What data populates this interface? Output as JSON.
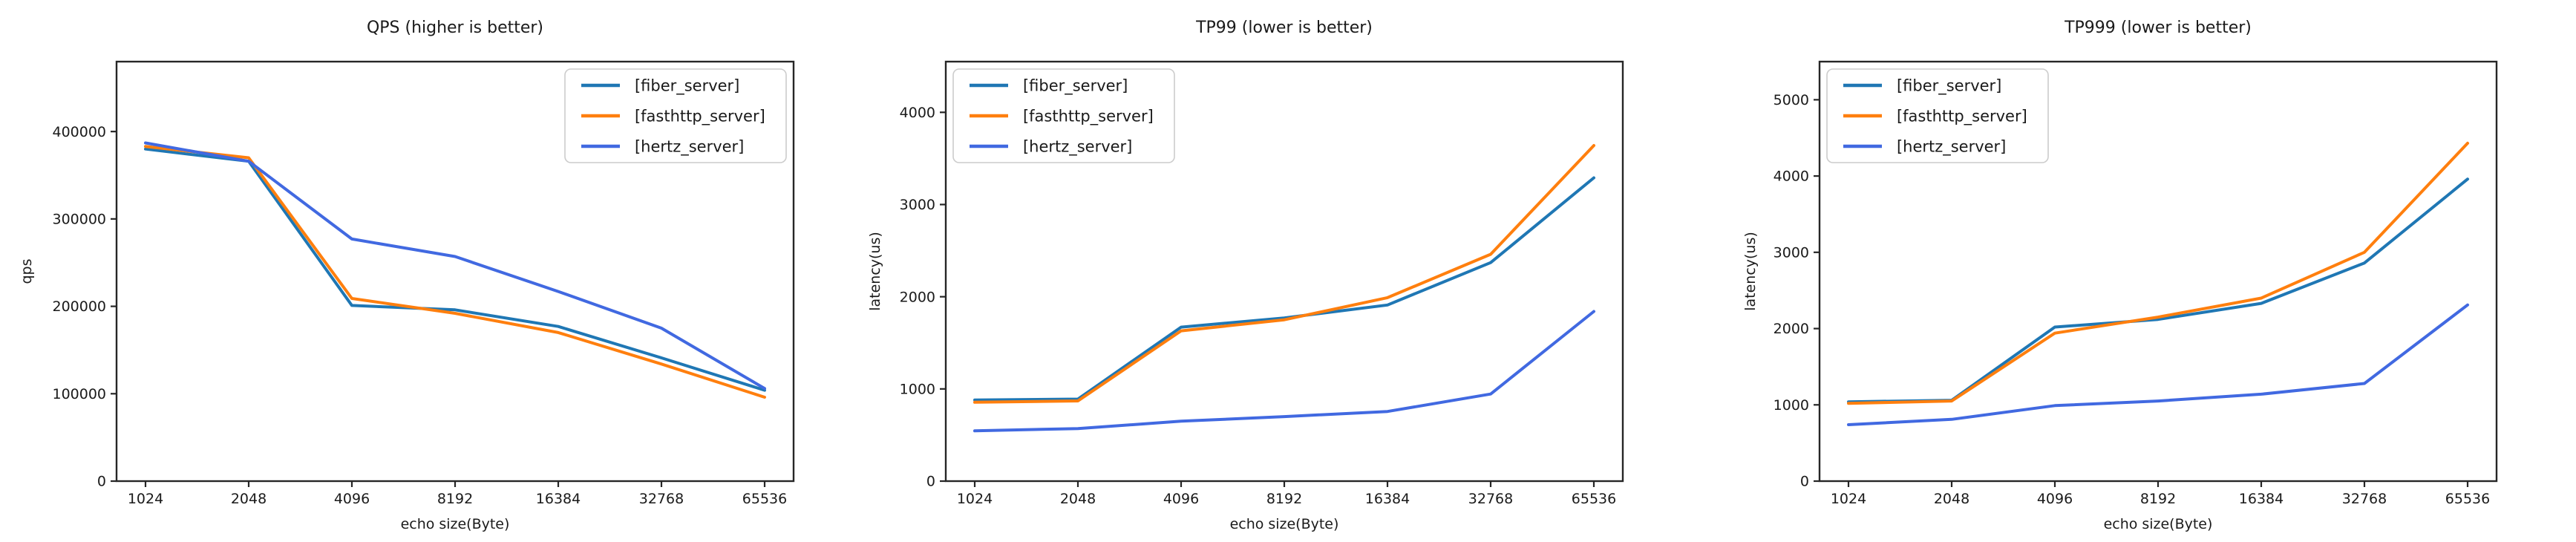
{
  "figure": {
    "background": "#ffffff",
    "spine_color": "#262626",
    "tick_color": "#262626"
  },
  "chart_data": [
    {
      "type": "line",
      "title": "QPS (higher is better)",
      "xlabel": "echo size(Byte)",
      "ylabel": "qps",
      "categories": [
        "1024",
        "2048",
        "4096",
        "8192",
        "16384",
        "32768",
        "65536"
      ],
      "series": [
        {
          "name": "[fiber_server]",
          "color": "#1f77b4",
          "values": [
            380000,
            366000,
            201000,
            196000,
            177000,
            141000,
            104000
          ]
        },
        {
          "name": "[fasthttp_server]",
          "color": "#ff7f0e",
          "values": [
            383000,
            370000,
            209000,
            192000,
            170000,
            134000,
            96000
          ]
        },
        {
          "name": "[hertz_server]",
          "color": "#4169e1",
          "values": [
            387000,
            366000,
            277000,
            257000,
            217000,
            175000,
            106000
          ]
        }
      ],
      "ylim": [
        0,
        480000
      ],
      "yticks": [
        0,
        100000,
        200000,
        300000,
        400000
      ],
      "yticklabels": [
        "0",
        "100000",
        "200000",
        "300000",
        "400000"
      ],
      "legend_loc": "upper right",
      "grid": false
    },
    {
      "type": "line",
      "title": "TP99 (lower is better)",
      "xlabel": "echo size(Byte)",
      "ylabel": "latency(us)",
      "categories": [
        "1024",
        "2048",
        "4096",
        "8192",
        "16384",
        "32768",
        "65536"
      ],
      "series": [
        {
          "name": "[fiber_server]",
          "color": "#1f77b4",
          "values": [
            880,
            890,
            1670,
            1770,
            1910,
            2370,
            3290
          ]
        },
        {
          "name": "[fasthttp_server]",
          "color": "#ff7f0e",
          "values": [
            855,
            870,
            1630,
            1750,
            1990,
            2460,
            3640
          ]
        },
        {
          "name": "[hertz_server]",
          "color": "#4169e1",
          "values": [
            545,
            570,
            650,
            700,
            755,
            945,
            1840
          ]
        }
      ],
      "ylim": [
        0,
        4550
      ],
      "yticks": [
        0,
        1000,
        2000,
        3000,
        4000
      ],
      "yticklabels": [
        "0",
        "1000",
        "2000",
        "3000",
        "4000"
      ],
      "legend_loc": "upper left",
      "grid": false
    },
    {
      "type": "line",
      "title": "TP999 (lower is better)",
      "xlabel": "echo size(Byte)",
      "ylabel": "latency(us)",
      "categories": [
        "1024",
        "2048",
        "4096",
        "8192",
        "16384",
        "32768",
        "65536"
      ],
      "series": [
        {
          "name": "[fiber_server]",
          "color": "#1f77b4",
          "values": [
            1040,
            1060,
            2020,
            2120,
            2330,
            2860,
            3960
          ]
        },
        {
          "name": "[fasthttp_server]",
          "color": "#ff7f0e",
          "values": [
            1020,
            1050,
            1940,
            2150,
            2400,
            3000,
            4430
          ]
        },
        {
          "name": "[hertz_server]",
          "color": "#4169e1",
          "values": [
            740,
            810,
            990,
            1050,
            1140,
            1280,
            2310
          ]
        }
      ],
      "ylim": [
        0,
        5500
      ],
      "yticks": [
        0,
        1000,
        2000,
        3000,
        4000,
        5000
      ],
      "yticklabels": [
        "0",
        "1000",
        "2000",
        "3000",
        "4000",
        "5000"
      ],
      "legend_loc": "upper left",
      "grid": false
    }
  ]
}
